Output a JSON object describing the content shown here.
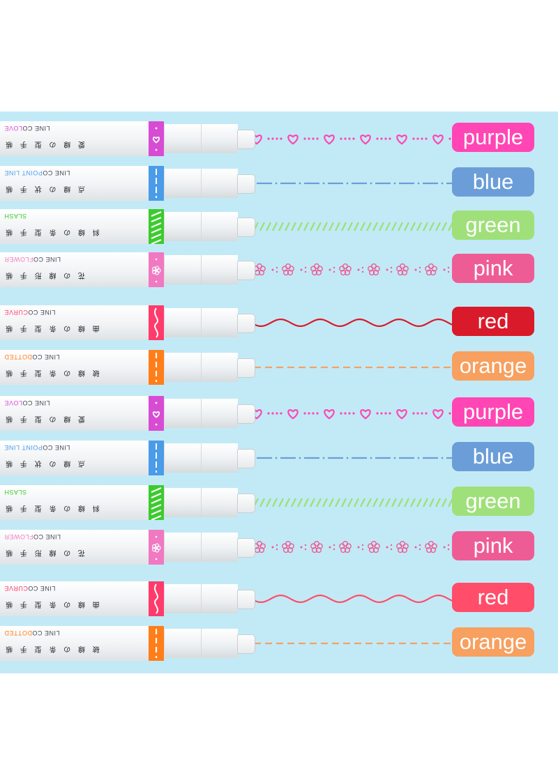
{
  "rows": [
    {
      "label": "purple",
      "style": "LOVE",
      "line": "LINE CO",
      "jp": "愛 線 の 型 手 帳",
      "color": "#ff46b4",
      "band": "#d84cd4",
      "pattern": "heart"
    },
    {
      "label": "blue",
      "style": "POINT LINE",
      "line": "LINE CO",
      "jp": "点 線 の 状 手 帳",
      "color": "#6b9ed8",
      "band": "#4a9be8",
      "pattern": "dashdot"
    },
    {
      "label": "green",
      "style": "SLASH",
      "line": "",
      "jp": "斜 線 の 条 型 手 帳",
      "color": "#9fe07a",
      "band": "#3ccb2e",
      "pattern": "slash"
    },
    {
      "label": "pink",
      "style": "FLOWER",
      "line": "LINE CO",
      "jp": "花 の 線 形 手 帳",
      "color": "#ee5c96",
      "band": "#f079c2",
      "pattern": "flower"
    },
    {
      "label": "red",
      "style": "CURVE",
      "line": "LINE CO",
      "jp": "曲 線 の 条 型 手 帳",
      "color": "#d91a2a",
      "band": "#ff3b6b",
      "pattern": "curve"
    },
    {
      "label": "orange",
      "style": "DOTTED",
      "line": "LINE CO",
      "jp": "破 線 の 条 型 手 帳",
      "color": "#f7a060",
      "band": "#ff7e1a",
      "pattern": "dash"
    },
    {
      "label": "purple",
      "style": "LOVE",
      "line": "LINE CO",
      "jp": "愛 線 の 型 手 帳",
      "color": "#ff46b4",
      "band": "#d84cd4",
      "pattern": "heart"
    },
    {
      "label": "blue",
      "style": "POINT LINE",
      "line": "LINE CO",
      "jp": "点 線 の 状 手 帳",
      "color": "#6b9ed8",
      "band": "#4a9be8",
      "pattern": "dashdot"
    },
    {
      "label": "green",
      "style": "SLASH",
      "line": "",
      "jp": "斜 線 の 条 型 手 帳",
      "color": "#9fe07a",
      "band": "#3ccb2e",
      "pattern": "slash"
    },
    {
      "label": "pink",
      "style": "FLOWER",
      "line": "LINE CO",
      "jp": "花 の 線 形 手 帳",
      "color": "#ee5c96",
      "band": "#f079c2",
      "pattern": "flower"
    },
    {
      "label": "red",
      "style": "CURVE",
      "line": "LINE CO",
      "jp": "曲 線 の 条 型 手 帳",
      "color": "#ff4d6a",
      "band": "#ff3b6b",
      "pattern": "curve"
    },
    {
      "label": "orange",
      "style": "DOTTED",
      "line": "LINE CO",
      "jp": "破 線 の 条 型 手 帳",
      "color": "#f7a060",
      "band": "#ff7e1a",
      "pattern": "dash"
    }
  ]
}
